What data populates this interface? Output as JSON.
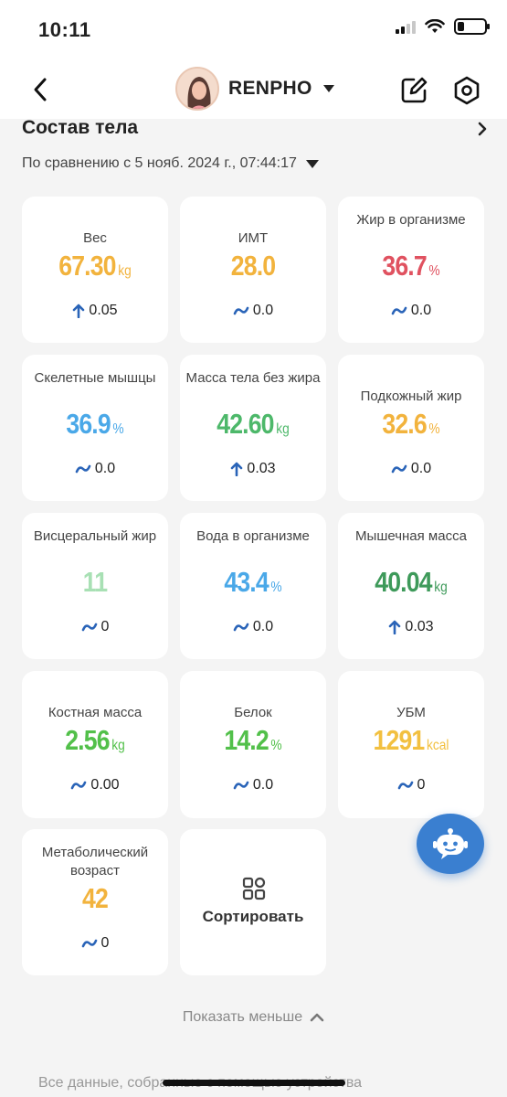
{
  "status_bar": {
    "time": "10:11"
  },
  "header": {
    "profile_name": "RENPHO"
  },
  "section": {
    "title": "Состав тела",
    "comparison": "По сравнению с 5 нояб. 2024 г., 07:44:17"
  },
  "metrics": [
    {
      "label": "Вес",
      "value": "67.30",
      "unit": "kg",
      "change": "0.05",
      "trend": "up",
      "color": "#f2b33d"
    },
    {
      "label": "ИМТ",
      "value": "28.0",
      "unit": "",
      "change": "0.0",
      "trend": "flat",
      "color": "#f2b33d"
    },
    {
      "label": "Жир в организме",
      "value": "36.7",
      "unit": "%",
      "change": "0.0",
      "trend": "flat",
      "color": "#e05260"
    },
    {
      "label": "Скелетные мышцы",
      "value": "36.9",
      "unit": "%",
      "change": "0.0",
      "trend": "flat",
      "color": "#4aa8e8"
    },
    {
      "label": "Масса тела без жира",
      "value": "42.60",
      "unit": "kg",
      "change": "0.03",
      "trend": "up",
      "color": "#4db86a"
    },
    {
      "label": "Подкожный жир",
      "value": "32.6",
      "unit": "%",
      "change": "0.0",
      "trend": "flat",
      "color": "#f2b33d"
    },
    {
      "label": "Висцеральный жир",
      "value": "11",
      "unit": "",
      "change": "0",
      "trend": "flat",
      "color": "#a8e0b4"
    },
    {
      "label": "Вода в организме",
      "value": "43.4",
      "unit": "%",
      "change": "0.0",
      "trend": "flat",
      "color": "#4aa8e8"
    },
    {
      "label": "Мышечная масса",
      "value": "40.04",
      "unit": "kg",
      "change": "0.03",
      "trend": "up",
      "color": "#3e9a5a"
    },
    {
      "label": "Костная масса",
      "value": "2.56",
      "unit": "kg",
      "change": "0.00",
      "trend": "flat",
      "color": "#52c04a"
    },
    {
      "label": "Белок",
      "value": "14.2",
      "unit": "%",
      "change": "0.0",
      "trend": "flat",
      "color": "#52c04a"
    },
    {
      "label": "УБМ",
      "value": "1291",
      "unit": "kcal",
      "change": "0",
      "trend": "flat",
      "color": "#f2c040"
    },
    {
      "label": "Метаболический возраст",
      "value": "42",
      "unit": "",
      "change": "0",
      "trend": "flat",
      "color": "#f2b33d"
    }
  ],
  "sort_button": {
    "label": "Сортировать"
  },
  "show_less": {
    "label": "Показать меньше"
  },
  "footer": {
    "text": "Все данные, собранные с помощью устройства"
  },
  "colors": {
    "trend_arrow": "#2a64b8",
    "bot_button": "#3a7fd0"
  }
}
